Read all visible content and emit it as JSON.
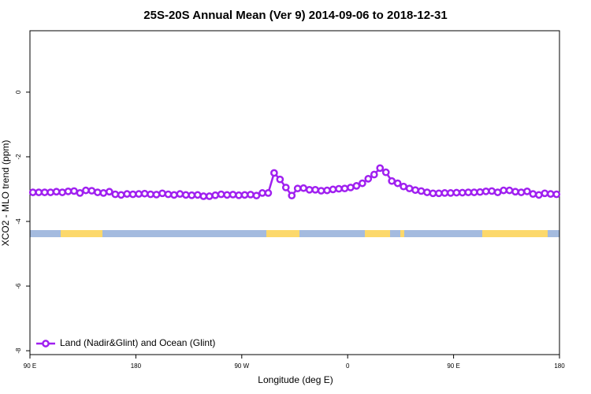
{
  "chart_data": {
    "type": "line",
    "title": "25S-20S Annual Mean (Ver 9)   2014-09-06 to 2018-12-31",
    "xlabel": "Longitude (deg E)",
    "ylabel": "XCO2 - MLO trend (ppm)",
    "xlim": [
      90,
      540
    ],
    "ylim": [
      -8.12,
      1.9
    ],
    "xticks": [
      {
        "value": 90,
        "label": "90 E"
      },
      180,
      {
        "value": 270,
        "label": "90 W"
      },
      {
        "value": 360,
        "label": "0"
      },
      {
        "value": 450,
        "label": "90 E"
      },
      {
        "value": 540,
        "label": "180"
      }
    ],
    "yticks": [
      0,
      -2,
      -4,
      -6,
      -8
    ],
    "legend": "bottom-left",
    "x": [
      92.5,
      97.5,
      102.5,
      107.5,
      112.5,
      117.5,
      122.5,
      127.5,
      132.5,
      137.5,
      142.5,
      147.5,
      152.5,
      157.5,
      162.5,
      167.5,
      172.5,
      177.5,
      182.5,
      187.5,
      192.5,
      197.5,
      202.5,
      207.5,
      212.5,
      217.5,
      222.5,
      227.5,
      232.5,
      237.5,
      242.5,
      247.5,
      252.5,
      257.5,
      262.5,
      267.5,
      272.5,
      277.5,
      282.5,
      287.5,
      292.5,
      297.5,
      302.5,
      307.5,
      312.5,
      317.5,
      322.5,
      327.5,
      332.5,
      337.5,
      342.5,
      347.5,
      352.5,
      357.5,
      362.5,
      367.5,
      372.5,
      377.5,
      382.5,
      387.5,
      392.5,
      397.5,
      402.5,
      407.5,
      412.5,
      417.5,
      422.5,
      427.5,
      432.5,
      437.5,
      442.5,
      447.5,
      452.5,
      457.5,
      462.5,
      467.5,
      472.5,
      477.5,
      482.5,
      487.5,
      492.5,
      497.5,
      502.5,
      507.5,
      512.5,
      517.5,
      522.5,
      527.5,
      532.5,
      537.5
    ],
    "series": [
      {
        "name": "Land (Nadir&Glint) and Ocean (Glint)",
        "color": "#a020f0",
        "values": [
          -3.1,
          -3.1,
          -3.1,
          -3.1,
          -3.08,
          -3.1,
          -3.07,
          -3.06,
          -3.12,
          -3.04,
          -3.05,
          -3.1,
          -3.12,
          -3.08,
          -3.16,
          -3.18,
          -3.15,
          -3.16,
          -3.15,
          -3.14,
          -3.16,
          -3.17,
          -3.13,
          -3.16,
          -3.18,
          -3.15,
          -3.18,
          -3.19,
          -3.18,
          -3.22,
          -3.22,
          -3.19,
          -3.16,
          -3.18,
          -3.17,
          -3.19,
          -3.18,
          -3.17,
          -3.2,
          -3.12,
          -3.12,
          -2.5,
          -2.7,
          -2.95,
          -3.2,
          -2.98,
          -2.97,
          -3.02,
          -3.02,
          -3.05,
          -3.04,
          -3.01,
          -2.99,
          -2.98,
          -2.95,
          -2.9,
          -2.82,
          -2.68,
          -2.55,
          -2.35,
          -2.48,
          -2.75,
          -2.82,
          -2.92,
          -2.98,
          -3.03,
          -3.06,
          -3.1,
          -3.13,
          -3.13,
          -3.12,
          -3.12,
          -3.11,
          -3.11,
          -3.1,
          -3.1,
          -3.09,
          -3.07,
          -3.06,
          -3.1,
          -3.04,
          -3.04,
          -3.08,
          -3.1,
          -3.07,
          -3.15,
          -3.18,
          -3.13,
          -3.15,
          -3.16
        ]
      }
    ]
  }
}
